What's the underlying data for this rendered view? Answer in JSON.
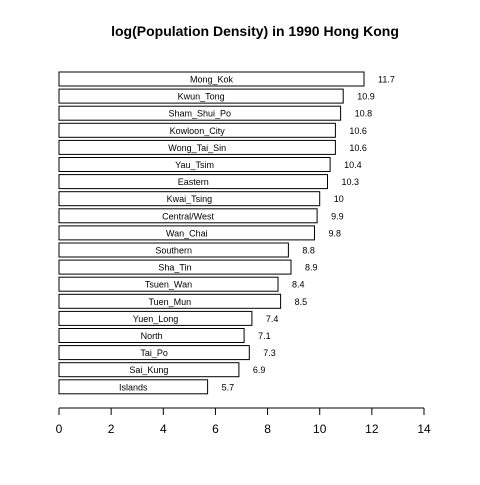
{
  "chart_data": {
    "type": "bar",
    "orientation": "horizontal",
    "title": "log(Population Density) in 1990 Hong Kong",
    "xlabel": "",
    "ylabel": "",
    "xlim": [
      0,
      14
    ],
    "x_ticks": [
      0,
      2,
      4,
      6,
      8,
      10,
      12,
      14
    ],
    "grid": false,
    "categories": [
      "Mong_Kok",
      "Kwun_Tong",
      "Sham_Shui_Po",
      "Kowloon_City",
      "Wong_Tai_Sin",
      "Yau_Tsim",
      "Eastern",
      "Kwai_Tsing",
      "Central/West",
      "Wan_Chai",
      "Southern",
      "Sha_Tin",
      "Tsuen_Wan",
      "Tuen_Mun",
      "Yuen_Long",
      "North",
      "Tai_Po",
      "Sai_Kung",
      "Islands"
    ],
    "values": [
      11.7,
      10.9,
      10.8,
      10.6,
      10.6,
      10.4,
      10.3,
      10,
      9.9,
      9.8,
      8.8,
      8.9,
      8.4,
      8.5,
      7.4,
      7.1,
      7.3,
      6.9,
      5.7
    ],
    "value_labels": [
      "11.7",
      "10.9",
      "10.8",
      "10.6",
      "10.6",
      "10.4",
      "10.3",
      "10",
      "9.9",
      "9.8",
      "8.8",
      "8.9",
      "8.4",
      "8.5",
      "7.4",
      "7.1",
      "7.3",
      "6.9",
      "5.7"
    ],
    "bar_fill": "#ffffff",
    "bar_stroke": "#000000"
  }
}
